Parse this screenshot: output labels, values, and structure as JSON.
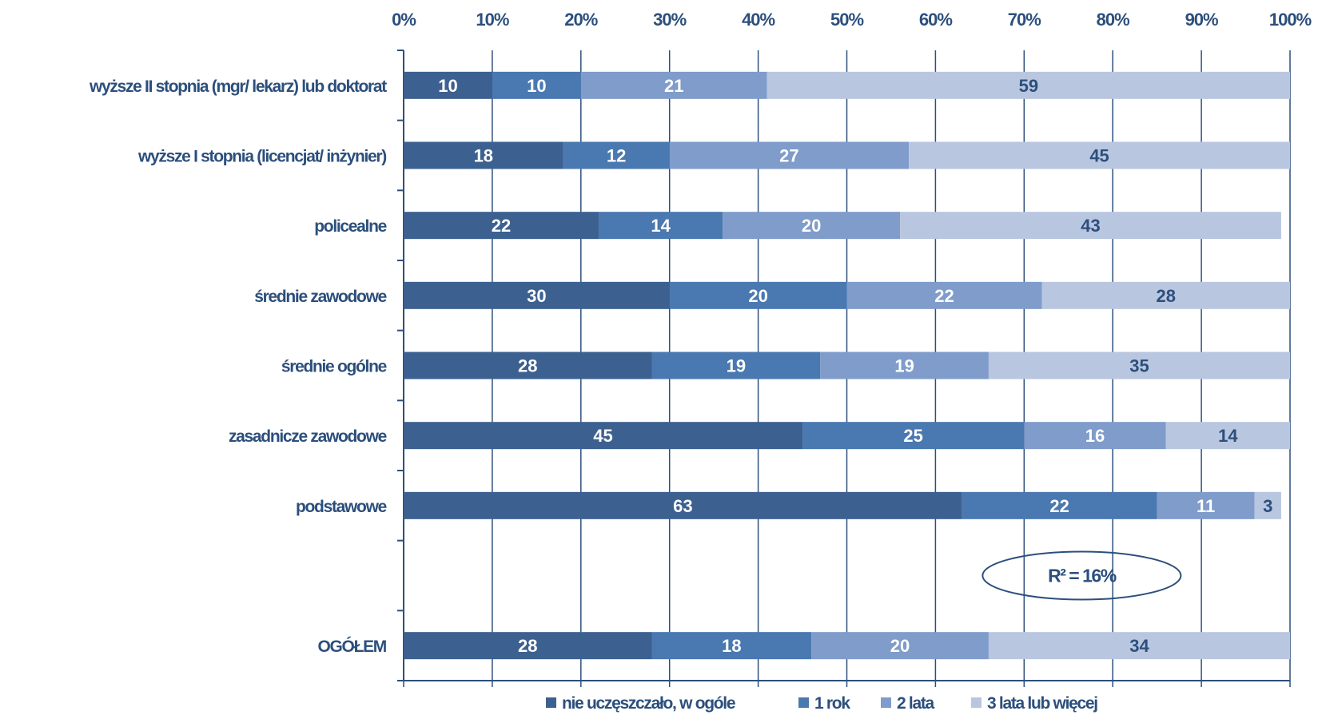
{
  "chart_data": {
    "type": "bar",
    "orientation": "horizontal",
    "stacked": true,
    "stack_normalized": true,
    "xlim": [
      0,
      100
    ],
    "x_ticks": [
      "0%",
      "10%",
      "20%",
      "30%",
      "40%",
      "50%",
      "60%",
      "70%",
      "80%",
      "90%",
      "100%"
    ],
    "x_axis_position": "top",
    "grid": true,
    "legend_position": "bottom",
    "categories": [
      "wyższe II stopnia (mgr/ lekarz) lub doktorat",
      "wyższe I stopnia (licencjat/ inżynier)",
      "policealne",
      "średnie zawodowe",
      "średnie ogólne",
      "zasadnicze zawodowe",
      "podstawowe",
      "",
      "OGÓŁEM"
    ],
    "series": [
      {
        "name": "nie uczęszczało, w ogóle",
        "color": "#3c6190",
        "label_color": "#ffffff",
        "values": [
          10,
          18,
          22,
          30,
          28,
          45,
          63,
          null,
          28
        ]
      },
      {
        "name": "1 rok",
        "color": "#4a78b0",
        "label_color": "#ffffff",
        "values": [
          10,
          12,
          14,
          20,
          19,
          25,
          22,
          null,
          18
        ]
      },
      {
        "name": "2 lata",
        "color": "#7f9ccb",
        "label_color": "#ffffff",
        "values": [
          21,
          27,
          20,
          22,
          19,
          16,
          11,
          null,
          20
        ]
      },
      {
        "name": "3 lata lub więcej",
        "color": "#b9c6e0",
        "label_color": "#2c4f7c",
        "values": [
          59,
          45,
          43,
          28,
          35,
          14,
          3,
          null,
          34
        ]
      }
    ],
    "annotations": [
      {
        "text": "R² = 16%",
        "shape": "ellipse",
        "position": "lower-right"
      }
    ]
  },
  "colors": {
    "axis": "#2c4f7c",
    "grid": "#2c4f7c",
    "text": "#2c4f7c"
  }
}
